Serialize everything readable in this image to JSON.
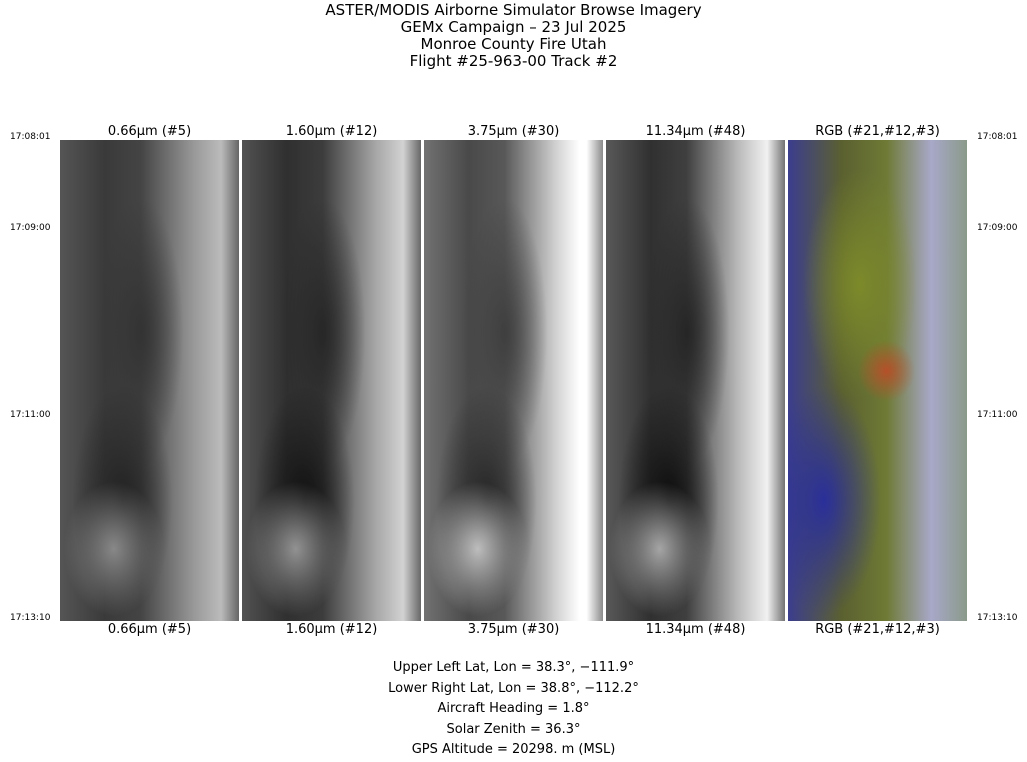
{
  "title_lines": [
    "ASTER/MODIS Airborne Simulator Browse Imagery",
    "GEMx Campaign – 23 Jul 2025",
    "Monroe County Fire Utah",
    "Flight #25-963-00 Track #2"
  ],
  "panels": [
    {
      "label": "0.66µm (#5)"
    },
    {
      "label": "1.60µm (#12)"
    },
    {
      "label": "3.75µm (#30)"
    },
    {
      "label": "11.34µm (#48)"
    },
    {
      "label": "RGB (#21,#12,#3)"
    }
  ],
  "times": [
    "17:08:01",
    "17:09:00",
    "17:11:00",
    "17:13:10"
  ],
  "info": {
    "upper_left": "Upper Left Lat, Lon =   38.3°, −111.9°",
    "lower_right": "Lower Right Lat, Lon =   38.8°, −112.2°",
    "heading": "Aircraft Heading =    1.8°",
    "solar_zenith": "Solar Zenith =   36.3°",
    "altitude": "GPS Altitude =  20298. m (MSL)"
  }
}
